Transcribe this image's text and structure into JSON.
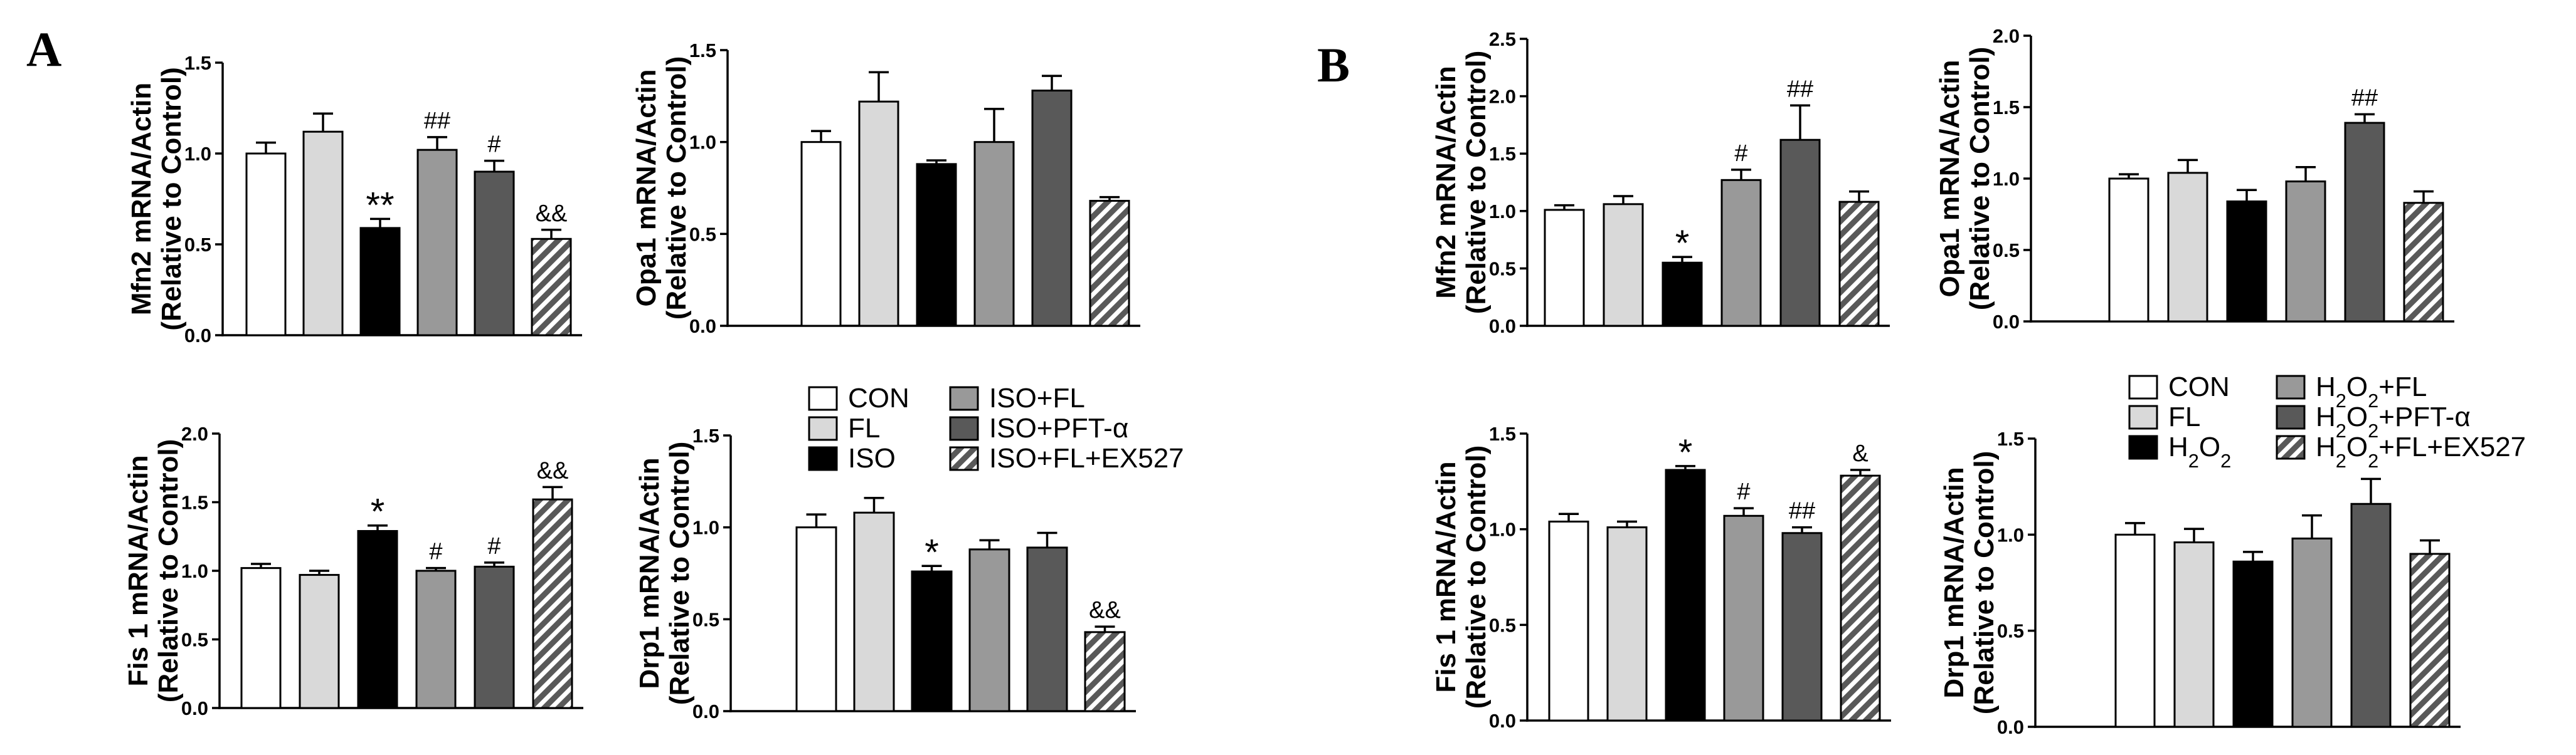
{
  "panels": [
    {
      "letter": "A"
    },
    {
      "letter": "B"
    }
  ],
  "colors": {
    "g1": "#ffffff",
    "g2": "#d9d9d9",
    "g3": "#000000",
    "g4": "#999999",
    "g5": "#595959",
    "g6_hatch": "#595959"
  },
  "legends": [
    {
      "items": [
        {
          "label": "CON",
          "style": "g1"
        },
        {
          "label": "FL",
          "style": "g2"
        },
        {
          "label": "ISO",
          "style": "g3"
        },
        {
          "label": "ISO+FL",
          "style": "g4"
        },
        {
          "label": "ISO+PFT-α",
          "style": "g5"
        },
        {
          "label": "ISO+FL+EX527",
          "style": "g6"
        }
      ]
    },
    {
      "items": [
        {
          "label": "CON",
          "style": "g1"
        },
        {
          "label": "FL",
          "style": "g2"
        },
        {
          "label": "H2O2",
          "style": "g3"
        },
        {
          "label": "H2O2+FL",
          "style": "g4"
        },
        {
          "label": "H2O2+PFT-α",
          "style": "g5"
        },
        {
          "label": "H2O2+FL+EX527",
          "style": "g6"
        }
      ]
    }
  ],
  "chart_data": [
    {
      "panel": "A",
      "type": "bar",
      "title": "",
      "ylabel_line1": "Mfn2 mRNA/Actin",
      "ylabel_line2": "(Relative to Control)",
      "categories": [
        "CON",
        "FL",
        "ISO",
        "ISO+FL",
        "ISO+PFT-α",
        "ISO+FL+EX527"
      ],
      "values": [
        1.0,
        1.12,
        0.59,
        1.02,
        0.9,
        0.53
      ],
      "errors": [
        0.06,
        0.1,
        0.05,
        0.07,
        0.06,
        0.05
      ],
      "annotations": [
        "",
        "",
        "**",
        "##",
        "#",
        "&&"
      ],
      "ylim": [
        0,
        1.5
      ],
      "ticks": [
        "0.0",
        "0.5",
        "1.0",
        "1.5"
      ]
    },
    {
      "panel": "A",
      "type": "bar",
      "title": "",
      "ylabel_line1": "Opa1 mRNA/Actin",
      "ylabel_line2": "(Relative to Control)",
      "categories": [
        "CON",
        "FL",
        "ISO",
        "ISO+FL",
        "ISO+PFT-α",
        "ISO+FL+EX527"
      ],
      "values": [
        1.0,
        1.22,
        0.88,
        1.0,
        1.28,
        0.68
      ],
      "errors": [
        0.06,
        0.16,
        0.02,
        0.18,
        0.08,
        0.02
      ],
      "annotations": [
        "",
        "",
        "",
        "",
        "",
        ""
      ],
      "ylim": [
        0,
        1.5
      ],
      "ticks": [
        "0.0",
        "0.5",
        "1.0",
        "1.5"
      ]
    },
    {
      "panel": "A",
      "type": "bar",
      "title": "",
      "ylabel_line1": "Fis 1 mRNA/Actin",
      "ylabel_line2": "(Relative to Control)",
      "categories": [
        "CON",
        "FL",
        "ISO",
        "ISO+FL",
        "ISO+PFT-α",
        "ISO+FL+EX527"
      ],
      "values": [
        1.02,
        0.97,
        1.29,
        1.0,
        1.03,
        1.52
      ],
      "errors": [
        0.03,
        0.03,
        0.04,
        0.02,
        0.03,
        0.09
      ],
      "annotations": [
        "",
        "",
        "*",
        "#",
        "#",
        "&&"
      ],
      "ylim": [
        0,
        2.0
      ],
      "ticks": [
        "0.0",
        "0.5",
        "1.0",
        "1.5",
        "2.0"
      ]
    },
    {
      "panel": "A",
      "type": "bar",
      "title": "",
      "ylabel_line1": "Drp1 mRNA/Actin",
      "ylabel_line2": "(Relative to Control)",
      "categories": [
        "CON",
        "FL",
        "ISO",
        "ISO+FL",
        "ISO+PFT-α",
        "ISO+FL+EX527"
      ],
      "values": [
        1.0,
        1.08,
        0.76,
        0.88,
        0.89,
        0.43
      ],
      "errors": [
        0.07,
        0.08,
        0.03,
        0.05,
        0.08,
        0.03
      ],
      "annotations": [
        "",
        "",
        "*",
        "",
        "",
        "&&"
      ],
      "ylim": [
        0,
        1.5
      ],
      "ticks": [
        "0.0",
        "0.5",
        "1.0",
        "1.5"
      ]
    },
    {
      "panel": "B",
      "type": "bar",
      "title": "",
      "ylabel_line1": "Mfn2 mRNA/Actin",
      "ylabel_line2": "(Relative to Control)",
      "categories": [
        "CON",
        "FL",
        "H2O2",
        "H2O2+FL",
        "H2O2+PFT-α",
        "H2O2+FL+EX527"
      ],
      "values": [
        1.01,
        1.06,
        0.55,
        1.27,
        1.62,
        1.08
      ],
      "errors": [
        0.04,
        0.07,
        0.05,
        0.09,
        0.3,
        0.09
      ],
      "annotations": [
        "",
        "",
        "*",
        "#",
        "##",
        ""
      ],
      "ylim": [
        0,
        2.5
      ],
      "ticks": [
        "0.0",
        "0.5",
        "1.0",
        "1.5",
        "2.0",
        "2.5"
      ]
    },
    {
      "panel": "B",
      "type": "bar",
      "title": "",
      "ylabel_line1": "Opa1 mRNA/Actin",
      "ylabel_line2": "(Relative to Control)",
      "categories": [
        "CON",
        "FL",
        "H2O2",
        "H2O2+FL",
        "H2O2+PFT-α",
        "H2O2+FL+EX527"
      ],
      "values": [
        1.0,
        1.04,
        0.84,
        0.98,
        1.39,
        0.83
      ],
      "errors": [
        0.03,
        0.09,
        0.08,
        0.1,
        0.06,
        0.08
      ],
      "annotations": [
        "",
        "",
        "",
        "",
        "##",
        ""
      ],
      "ylim": [
        0,
        2.0
      ],
      "ticks": [
        "0.0",
        "0.5",
        "1.0",
        "1.5",
        "2.0"
      ]
    },
    {
      "panel": "B",
      "type": "bar",
      "title": "",
      "ylabel_line1": "Fis 1 mRNA/Actin",
      "ylabel_line2": "(Relative to Control)",
      "categories": [
        "CON",
        "FL",
        "H2O2",
        "H2O2+FL",
        "H2O2+PFT-α",
        "H2O2+FL+EX527"
      ],
      "values": [
        1.04,
        1.01,
        1.31,
        1.07,
        0.98,
        1.28
      ],
      "errors": [
        0.04,
        0.03,
        0.02,
        0.04,
        0.03,
        0.03
      ],
      "annotations": [
        "",
        "",
        "*",
        "#",
        "##",
        "&"
      ],
      "ylim": [
        0,
        1.5
      ],
      "ticks": [
        "0.0",
        "0.5",
        "1.0",
        "1.5"
      ]
    },
    {
      "panel": "B",
      "type": "bar",
      "title": "",
      "ylabel_line1": "Drp1 mRNA/Actin",
      "ylabel_line2": "(Relative to Control)",
      "categories": [
        "CON",
        "FL",
        "H2O2",
        "H2O2+FL",
        "H2O2+PFT-α",
        "H2O2+FL+EX527"
      ],
      "values": [
        1.0,
        0.96,
        0.86,
        0.98,
        1.16,
        0.9
      ],
      "errors": [
        0.06,
        0.07,
        0.05,
        0.12,
        0.13,
        0.07
      ],
      "annotations": [
        "",
        "",
        "",
        "",
        "",
        ""
      ],
      "ylim": [
        0,
        1.5
      ],
      "ticks": [
        "0.0",
        "0.5",
        "1.0",
        "1.5"
      ]
    }
  ]
}
